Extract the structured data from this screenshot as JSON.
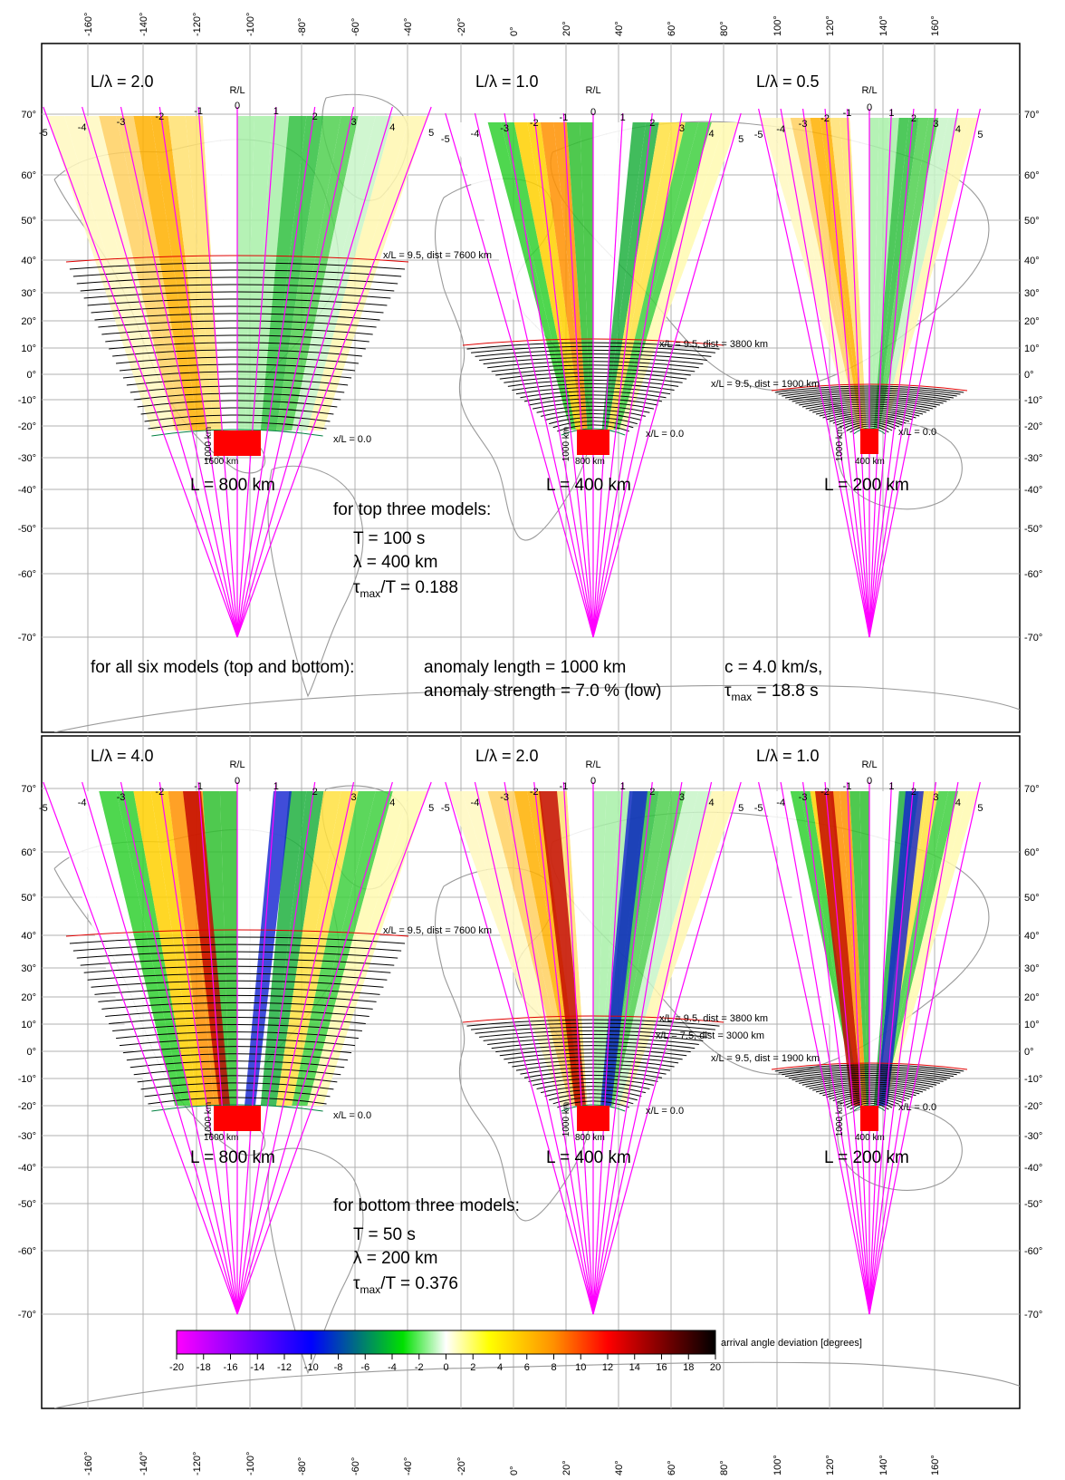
{
  "lon_ticks": [
    "-160°",
    "-140°",
    "-120°",
    "-100°",
    "-80°",
    "-60°",
    "-40°",
    "-20°",
    "0°",
    "20°",
    "40°",
    "60°",
    "80°",
    "100°",
    "120°",
    "140°",
    "160°"
  ],
  "lat_ticks": [
    "70°",
    "60°",
    "50°",
    "40°",
    "30°",
    "20°",
    "10°",
    "0°",
    "-10°",
    "-20°",
    "-30°",
    "-40°",
    "-50°",
    "-60°",
    "-70°"
  ],
  "rl_labels": [
    "-5",
    "-4",
    "-3",
    "-2",
    "-1",
    "0",
    "1",
    "2",
    "3",
    "4",
    "5"
  ],
  "panels": [
    {
      "ratio_label": "L/λ = 2.0",
      "rl_header": "R/L",
      "L_label": "L = 800 km",
      "anomaly_height": "1000 km",
      "anomaly_width": "1600 km",
      "far_line": "x/L = 9.5, dist = 7600 km",
      "mid_line": "",
      "near_line": "x/L = 0.0"
    },
    {
      "ratio_label": "L/λ = 1.0",
      "rl_header": "R/L",
      "L_label": "L = 400 km",
      "anomaly_height": "1000 km",
      "anomaly_width": "800 km",
      "far_line": "x/L = 9.5, dist = 3800 km",
      "mid_line": "",
      "near_line": "x/L = 0.0"
    },
    {
      "ratio_label": "L/λ = 0.5",
      "rl_header": "R/L",
      "L_label": "L = 200 km",
      "anomaly_height": "1000 km",
      "anomaly_width": "400 km",
      "far_line": "x/L = 9.5, dist = 1900 km",
      "mid_line": "",
      "near_line": "x/L = 0.0"
    },
    {
      "ratio_label": "L/λ = 4.0",
      "rl_header": "R/L",
      "L_label": "L = 800 km",
      "anomaly_height": "1000 km",
      "anomaly_width": "1600 km",
      "far_line": "x/L = 9.5, dist = 7600 km",
      "mid_line": "",
      "near_line": "x/L = 0.0"
    },
    {
      "ratio_label": "L/λ = 2.0",
      "rl_header": "R/L",
      "L_label": "L = 400 km",
      "anomaly_height": "1000 km",
      "anomaly_width": "800 km",
      "far_line": "x/L = 9.5, dist = 3800 km",
      "mid_line": "x/L = 7.5, dist = 3000 km",
      "near_line": "x/L = 0.0"
    },
    {
      "ratio_label": "L/λ = 1.0",
      "rl_header": "R/L",
      "L_label": "L = 200 km",
      "anomaly_height": "1000 km",
      "anomaly_width": "400 km",
      "far_line": "x/L = 9.5, dist = 1900 km",
      "mid_line": "",
      "near_line": "x/L = 0.0"
    }
  ],
  "top_params": {
    "heading": "for top three models:",
    "T": "T = 100 s",
    "lambda": "λ = 400 km",
    "tau_pre": "τ",
    "tau_sub": "max",
    "tau_post": "/T = 0.188"
  },
  "bottom_params": {
    "heading": "for bottom three models:",
    "T": "T = 50 s",
    "lambda": "λ = 200 km",
    "tau_pre": "τ",
    "tau_sub": "max",
    "tau_post": "/T = 0.376"
  },
  "shared": {
    "heading": "for all six models (top and bottom):",
    "length": "anomaly length = 1000 km",
    "strength": "anomaly strength = 7.0 % (low)",
    "speed": "c = 4.0 km/s,",
    "tau_pre": "τ",
    "tau_sub": "max",
    "tau_post": " = 18.8 s"
  },
  "colorbar": {
    "ticks": [
      "-20",
      "-18",
      "-16",
      "-14",
      "-12",
      "-10",
      "-8",
      "-6",
      "-4",
      "-2",
      "0",
      "2",
      "4",
      "6",
      "8",
      "10",
      "12",
      "14",
      "16",
      "18",
      "20"
    ],
    "label": "arrival angle deviation [degrees]",
    "colors": [
      "#ff00ff",
      "#0000ff",
      "#00e000",
      "#ffffff",
      "#ffff00",
      "#ff8000",
      "#ff0000",
      "#000000"
    ]
  }
}
